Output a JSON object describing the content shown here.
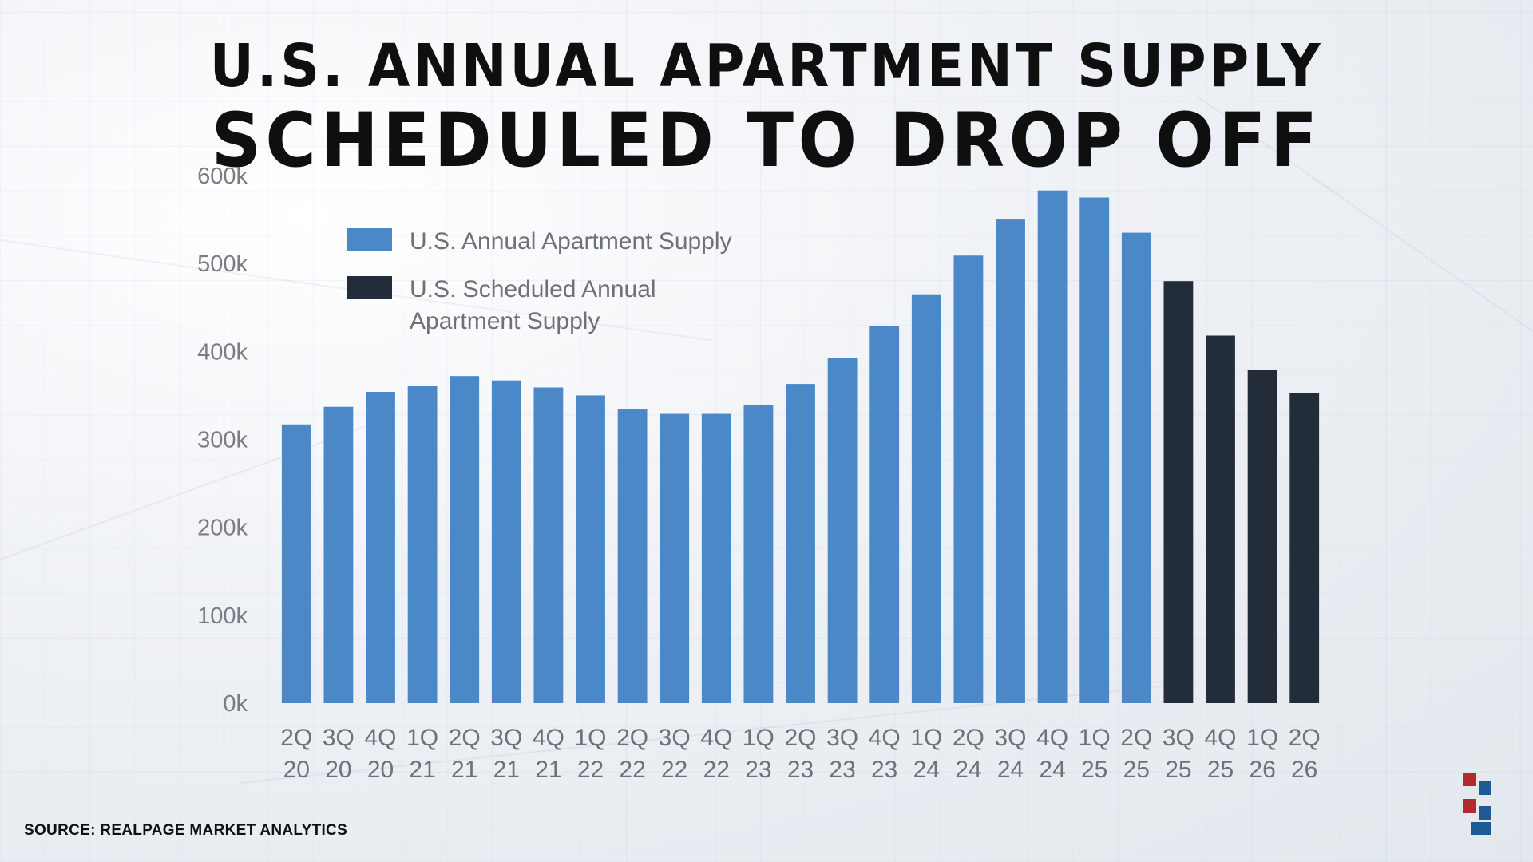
{
  "title": {
    "line1": "U.S. Annual Apartment Supply",
    "line2": "Scheduled to Drop Off"
  },
  "source": "SOURCE: REALPAGE MARKET ANALYTICS",
  "colors": {
    "actual": "#4a88c7",
    "scheduled": "#232c39",
    "logo_red": "#b22a2f",
    "logo_blue": "#1f5a93"
  },
  "chart_data": {
    "type": "bar",
    "title": "U.S. Annual Apartment Supply Scheduled to Drop Off",
    "categories": [
      [
        "2Q",
        "20"
      ],
      [
        "3Q",
        "20"
      ],
      [
        "4Q",
        "20"
      ],
      [
        "1Q",
        "21"
      ],
      [
        "2Q",
        "21"
      ],
      [
        "3Q",
        "21"
      ],
      [
        "4Q",
        "21"
      ],
      [
        "1Q",
        "22"
      ],
      [
        "2Q",
        "22"
      ],
      [
        "3Q",
        "22"
      ],
      [
        "4Q",
        "22"
      ],
      [
        "1Q",
        "23"
      ],
      [
        "2Q",
        "23"
      ],
      [
        "3Q",
        "23"
      ],
      [
        "4Q",
        "23"
      ],
      [
        "1Q",
        "24"
      ],
      [
        "2Q",
        "24"
      ],
      [
        "3Q",
        "24"
      ],
      [
        "4Q",
        "24"
      ],
      [
        "1Q",
        "25"
      ],
      [
        "2Q",
        "25"
      ],
      [
        "3Q",
        "25"
      ],
      [
        "4Q",
        "25"
      ],
      [
        "1Q",
        "26"
      ],
      [
        "2Q",
        "26"
      ]
    ],
    "values": [
      317000,
      337000,
      354000,
      361000,
      372000,
      367000,
      359000,
      350000,
      334000,
      329000,
      329000,
      339000,
      363000,
      393000,
      429000,
      465000,
      509000,
      550000,
      583000,
      575000,
      535000,
      480000,
      418000,
      379000,
      353000
    ],
    "series": [
      {
        "name": "U.S. Annual Apartment Supply",
        "range": [
          0,
          20
        ]
      },
      {
        "name": "U.S. Scheduled Annual Apartment Supply",
        "range": [
          21,
          24
        ]
      }
    ],
    "legend_lines": [
      [
        "U.S. Annual Apartment Supply"
      ],
      [
        "U.S. Scheduled Annual",
        "Apartment Supply"
      ]
    ],
    "yticks": [
      0,
      100000,
      200000,
      300000,
      400000,
      500000,
      600000
    ],
    "ytick_labels": [
      "0k",
      "100k",
      "200k",
      "300k",
      "400k",
      "500k",
      "600k"
    ],
    "ylim": [
      0,
      600000
    ],
    "xlabel": "",
    "ylabel": "",
    "grid": false,
    "legend_position": "top-left"
  }
}
